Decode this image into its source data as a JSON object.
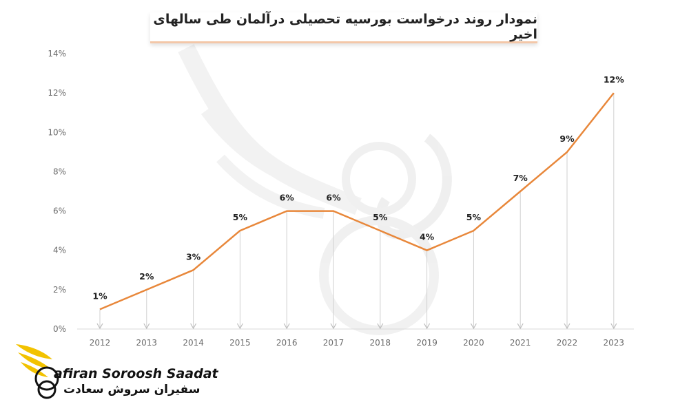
{
  "chart_data": {
    "type": "line",
    "title": "نمودار روند درخواست بورسیه تحصیلی درآلمان طی سالهای اخیر",
    "xlabel": "",
    "ylabel": "",
    "categories": [
      "2012",
      "2013",
      "2014",
      "2015",
      "2016",
      "2017",
      "2018",
      "2019",
      "2020",
      "2021",
      "2022",
      "2023"
    ],
    "series": [
      {
        "values": [
          1,
          2,
          3,
          5,
          6,
          6,
          5,
          4,
          5,
          7,
          9,
          12
        ]
      }
    ],
    "data_labels": [
      "1%",
      "2%",
      "3%",
      "5%",
      "6%",
      "6%",
      "5%",
      "4%",
      "5%",
      "7%",
      "9%",
      "12%"
    ],
    "y_ticks": [
      "0%",
      "2%",
      "4%",
      "6%",
      "8%",
      "10%",
      "12%",
      "14%"
    ],
    "ylim": [
      0,
      14
    ],
    "grid": false,
    "drop_lines": true,
    "line_color": "#e8873a"
  },
  "logo": {
    "name_en": "afiran Soroosh Saadat",
    "name_fa": "سفیران سروش سعادت",
    "accent": "#f2c200"
  }
}
